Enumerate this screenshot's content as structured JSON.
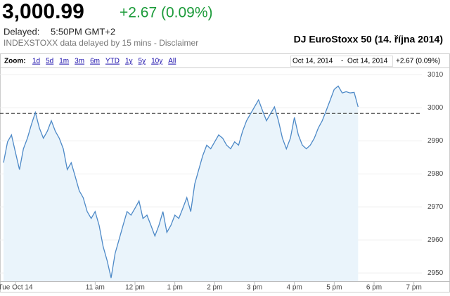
{
  "header": {
    "price": "3,000.99",
    "change": "+2.67 (0.09%)",
    "delayed_label": "Delayed:",
    "delayed_time": "5:50PM GMT+2",
    "source": "INDEXSTOXX data delayed by 15 mins - Disclaimer"
  },
  "toolbar": {
    "zoom_label": "Zoom:",
    "ranges": [
      "1d",
      "5d",
      "1m",
      "3m",
      "6m",
      "YTD",
      "1y",
      "5y",
      "10y",
      "All"
    ],
    "date_from": "Oct 14, 2014",
    "date_separator": "-",
    "date_to": "Oct 14, 2014"
  },
  "chart_data": {
    "type": "line",
    "title": "DJ EuroStoxx 50 (14. října 2014)",
    "x": [
      8.7,
      8.8,
      8.9,
      9.0,
      9.1,
      9.2,
      9.3,
      9.4,
      9.5,
      9.6,
      9.7,
      9.8,
      9.9,
      10.0,
      10.1,
      10.2,
      10.3,
      10.4,
      10.5,
      10.6,
      10.7,
      10.8,
      10.9,
      11.0,
      11.1,
      11.2,
      11.3,
      11.4,
      11.5,
      11.6,
      11.7,
      11.8,
      11.9,
      12.0,
      12.1,
      12.2,
      12.3,
      12.4,
      12.5,
      12.6,
      12.7,
      12.8,
      12.9,
      13.0,
      13.1,
      13.2,
      13.3,
      13.4,
      13.5,
      13.6,
      13.7,
      13.8,
      13.9,
      14.0,
      14.1,
      14.2,
      14.3,
      14.4,
      14.5,
      14.6,
      14.7,
      14.8,
      14.9,
      15.0,
      15.1,
      15.2,
      15.3,
      15.4,
      15.5,
      15.6,
      15.7,
      15.8,
      15.9,
      16.0,
      16.1,
      16.2,
      16.3,
      16.4,
      16.5,
      16.6,
      16.7,
      16.8,
      16.9,
      17.0,
      17.1,
      17.2,
      17.3,
      17.4,
      17.5,
      17.6
    ],
    "series": [
      {
        "color": "#4d89c7",
        "values": [
          2983.4,
          2989.7,
          2991.8,
          2986.5,
          2981.3,
          2987.6,
          2990.8,
          2995.0,
          2998.6,
          2993.9,
          2990.8,
          2992.9,
          2996.1,
          2992.9,
          2990.8,
          2987.6,
          2981.3,
          2983.4,
          2979.2,
          2974.9,
          2972.8,
          2968.6,
          2966.5,
          2968.6,
          2964.4,
          2958.0,
          2953.8,
          2948.5,
          2955.9,
          2960.1,
          2964.4,
          2968.6,
          2967.5,
          2969.6,
          2971.8,
          2966.5,
          2967.5,
          2964.4,
          2961.2,
          2964.4,
          2968.6,
          2962.3,
          2964.4,
          2967.5,
          2966.5,
          2969.6,
          2972.8,
          2968.6,
          2977.0,
          2981.3,
          2985.5,
          2988.7,
          2987.6,
          2989.7,
          2991.8,
          2990.8,
          2988.7,
          2987.6,
          2989.7,
          2988.7,
          2992.9,
          2996.1,
          2998.2,
          3000.3,
          3002.4,
          2999.2,
          2996.1,
          2998.2,
          3000.3,
          2996.1,
          2990.8,
          2987.6,
          2990.8,
          2997.1,
          2991.8,
          2988.7,
          2987.6,
          2988.7,
          2990.8,
          2993.9,
          2996.1,
          2999.2,
          3002.4,
          3005.6,
          3006.6,
          3004.5,
          3004.9,
          3004.5,
          3004.7,
          3000.3
        ]
      }
    ],
    "fill_color": "#eaf4fb",
    "previous_close": 2998.32,
    "xlim": [
      8.7,
      19.2
    ],
    "xticks": [
      {
        "value": 9,
        "label": "Tue Oct 14"
      },
      {
        "value": 11,
        "label": "11 am"
      },
      {
        "value": 12,
        "label": "12 pm"
      },
      {
        "value": 13,
        "label": "1 pm"
      },
      {
        "value": 14,
        "label": "2 pm"
      },
      {
        "value": 15,
        "label": "3 pm"
      },
      {
        "value": 16,
        "label": "4 pm"
      },
      {
        "value": 17,
        "label": "5 pm"
      },
      {
        "value": 18,
        "label": "6 pm"
      },
      {
        "value": 19,
        "label": "7 pm"
      }
    ],
    "ylim": [
      2947.5,
      3012
    ],
    "yticks": [
      2950,
      2960,
      2970,
      2980,
      2990,
      3000,
      3010
    ],
    "grid": true
  }
}
